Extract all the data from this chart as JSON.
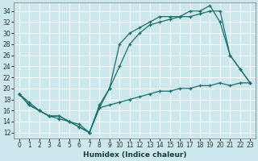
{
  "xlabel": "Humidex (Indice chaleur)",
  "bg_color": "#cde8ec",
  "grid_color": "#ffffff",
  "line_color": "#1a6e6a",
  "xlim": [
    -0.5,
    23.5
  ],
  "ylim": [
    11,
    35.5
  ],
  "xticks": [
    0,
    1,
    2,
    3,
    4,
    5,
    6,
    7,
    8,
    9,
    10,
    11,
    12,
    13,
    14,
    15,
    16,
    17,
    18,
    19,
    20,
    21,
    22,
    23
  ],
  "yticks": [
    12,
    14,
    16,
    18,
    20,
    22,
    24,
    26,
    28,
    30,
    32,
    34
  ],
  "line1_x": [
    0,
    1,
    2,
    3,
    4,
    5,
    6,
    7,
    8,
    9,
    10,
    11,
    12,
    13,
    14,
    15,
    16,
    17,
    18,
    19,
    20,
    21,
    22,
    23
  ],
  "line1_y": [
    19,
    17,
    16,
    15,
    15,
    14,
    13,
    12,
    16.5,
    20,
    28,
    30,
    31,
    32,
    33,
    33,
    33,
    34,
    34,
    35,
    32,
    26,
    23.5,
    21
  ],
  "line2_x": [
    0,
    1,
    2,
    3,
    4,
    5,
    6,
    7,
    8,
    9,
    10,
    11,
    12,
    13,
    14,
    15,
    16,
    17,
    18,
    19,
    20,
    21,
    22,
    23
  ],
  "line2_y": [
    19,
    17,
    16,
    15,
    15,
    14,
    13,
    12,
    17,
    20,
    24,
    28,
    30,
    31.5,
    32,
    32.5,
    33,
    33,
    33.5,
    34,
    34,
    26,
    23.5,
    21
  ],
  "line3_x": [
    0,
    1,
    2,
    3,
    4,
    5,
    6,
    7,
    8,
    9,
    10,
    11,
    12,
    13,
    14,
    15,
    16,
    17,
    18,
    19,
    20,
    21,
    22,
    23
  ],
  "line3_y": [
    19,
    17.5,
    16,
    15,
    14.5,
    14,
    13.5,
    12,
    16.5,
    17,
    17.5,
    18,
    18.5,
    19,
    19.5,
    19.5,
    20,
    20,
    20.5,
    20.5,
    21,
    20.5,
    21,
    21
  ]
}
